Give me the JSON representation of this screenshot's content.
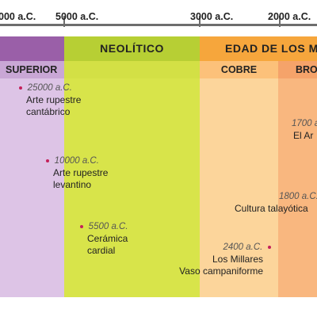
{
  "axis": {
    "ticks": [
      "000 a.C.",
      "5000 a.C.",
      "3000 a.C.",
      "2000 a.C."
    ]
  },
  "periods": {
    "paleolitico": {
      "label": "SUPERIOR",
      "color": "#ddc4e6",
      "header_color": "#9a5fa8"
    },
    "neolitico": {
      "label": "NEOLÍTICO",
      "color": "#d8e44a",
      "header_color": "#b7cf34"
    },
    "metales": {
      "label": "EDAD DE LOS M",
      "header_color": "#f6a63c"
    },
    "cobre": {
      "label": "COBRE",
      "color": "#fcd59b",
      "header_color": "#fcc17a"
    },
    "bronce": {
      "label": "BRO",
      "color": "#f9b77f",
      "header_color": "#f5a36a"
    }
  },
  "events": [
    {
      "year": "25000 a.C.",
      "lines": [
        "Arte rupestre",
        "cantábrico"
      ]
    },
    {
      "year": "10000 a.C.",
      "lines": [
        "Arte rupestre",
        "levantino"
      ]
    },
    {
      "year": "5500 a.C.",
      "lines": [
        "Cerámica",
        "cardial"
      ]
    },
    {
      "year": "2400 a.C.",
      "lines": [
        "Los Millares",
        "Vaso campaniforme"
      ]
    },
    {
      "year": "1800 a.C.",
      "lines": [
        "Cultura talayótica"
      ]
    },
    {
      "year": "1700 a",
      "lines": [
        "El Ar"
      ]
    }
  ]
}
